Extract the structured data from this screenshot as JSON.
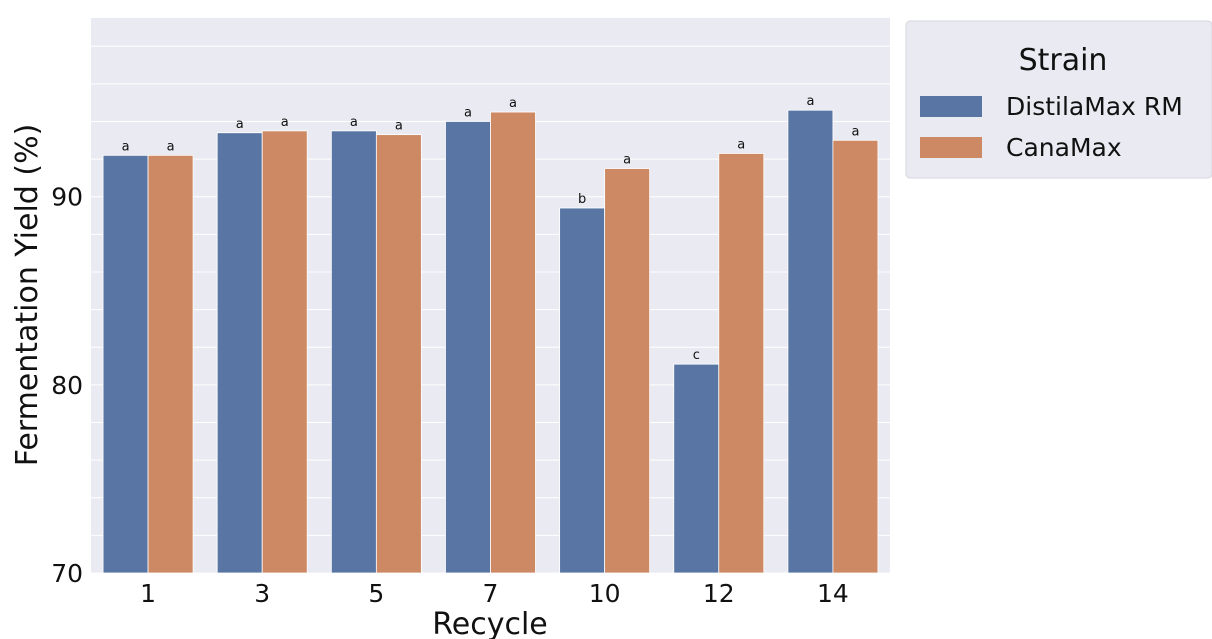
{
  "chart_data": {
    "type": "bar",
    "xlabel": "Recycle",
    "ylabel": "Fermentation Yield (%)",
    "ylim": [
      70,
      99.5
    ],
    "yticks": [
      "70",
      "80",
      "90"
    ],
    "categories": [
      "1",
      "3",
      "5",
      "7",
      "10",
      "12",
      "14"
    ],
    "grid": true,
    "legend": {
      "title": "Strain",
      "placement": "outside-right-top"
    },
    "series": [
      {
        "name": "DistilaMax RM",
        "color": "#5875a4",
        "values": [
          92.2,
          93.4,
          93.5,
          94.0,
          89.4,
          81.1,
          94.6
        ],
        "significance": [
          "a",
          "a",
          "a",
          "a",
          "b",
          "c",
          "a"
        ]
      },
      {
        "name": "CanaMax",
        "color": "#cc8963",
        "values": [
          92.2,
          93.5,
          93.3,
          94.5,
          91.5,
          92.3,
          93.0
        ],
        "significance": [
          "a",
          "a",
          "a",
          "a",
          "a",
          "a",
          "a"
        ]
      }
    ]
  }
}
